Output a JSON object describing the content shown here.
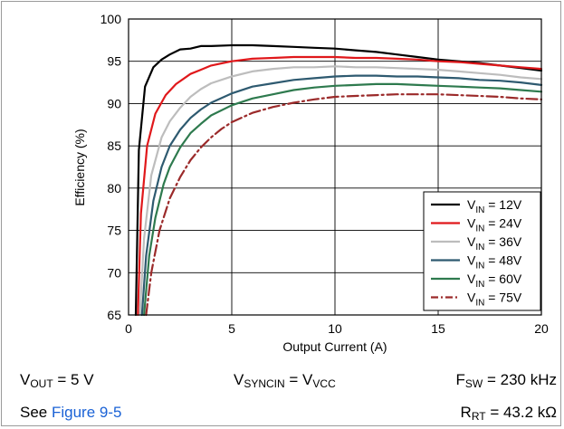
{
  "chart_data": {
    "type": "line",
    "xlabel": "Output Current (A)",
    "ylabel": "Efficiency (%)",
    "xlim": [
      0,
      20
    ],
    "ylim": [
      65,
      100
    ],
    "xticks": [
      0,
      5,
      10,
      15,
      20
    ],
    "yticks": [
      65,
      70,
      75,
      80,
      85,
      90,
      95,
      100
    ],
    "grid": true,
    "legend_position": "bottom-right",
    "series": [
      {
        "name": "VIN = 12V",
        "name_main": "V",
        "name_sub": "IN",
        "name_rest": " = 12V",
        "color": "#000000",
        "dash": "solid",
        "x": [
          0.35,
          0.5,
          0.8,
          1.2,
          1.6,
          2,
          2.5,
          3,
          3.5,
          4,
          5,
          6,
          7,
          8,
          9,
          10,
          11,
          12,
          13,
          14,
          15,
          16,
          17,
          18,
          19,
          20
        ],
        "y": [
          65,
          84.5,
          92,
          94.3,
          95.2,
          95.8,
          96.4,
          96.5,
          96.8,
          96.8,
          96.9,
          96.9,
          96.8,
          96.7,
          96.6,
          96.5,
          96.3,
          96.1,
          95.8,
          95.5,
          95.2,
          95.0,
          94.8,
          94.5,
          94.2,
          93.9
        ]
      },
      {
        "name": "VIN = 24V",
        "name_main": "V",
        "name_sub": "IN",
        "name_rest": " = 24V",
        "color": "#e0181b",
        "dash": "solid",
        "x": [
          0.45,
          0.6,
          0.9,
          1.3,
          1.8,
          2.3,
          3,
          3.5,
          4,
          5,
          6,
          7,
          8,
          9,
          10,
          11,
          12,
          13,
          14,
          15,
          16,
          17,
          18,
          19,
          20
        ],
        "y": [
          65,
          77,
          85,
          88.8,
          91,
          92.3,
          93.5,
          94,
          94.5,
          95,
          95.3,
          95.4,
          95.5,
          95.5,
          95.5,
          95.4,
          95.4,
          95.3,
          95.2,
          95.0,
          94.9,
          94.7,
          94.5,
          94.3,
          94.1
        ]
      },
      {
        "name": "VIN = 36V",
        "name_main": "V",
        "name_sub": "IN",
        "name_rest": " = 36V",
        "color": "#bdbdbd",
        "dash": "solid",
        "x": [
          0.55,
          0.75,
          1.1,
          1.6,
          2,
          2.5,
          3,
          3.5,
          4,
          5,
          6,
          7,
          8,
          9,
          10,
          11,
          12,
          13,
          14,
          15,
          16,
          17,
          18,
          19,
          20
        ],
        "y": [
          65,
          74,
          81.5,
          86,
          87.9,
          89.5,
          90.8,
          91.7,
          92.4,
          93.2,
          93.8,
          94.1,
          94.3,
          94.3,
          94.4,
          94.3,
          94.3,
          94.2,
          94.1,
          94.0,
          93.8,
          93.6,
          93.4,
          93.1,
          92.9
        ]
      },
      {
        "name": "VIN = 48V",
        "name_main": "V",
        "name_sub": "IN",
        "name_rest": " = 48V",
        "color": "#2e5a70",
        "dash": "solid",
        "x": [
          0.65,
          0.85,
          1.2,
          1.6,
          2,
          2.5,
          3,
          3.5,
          4,
          5,
          6,
          7,
          8,
          9,
          10,
          11,
          12,
          13,
          14,
          15,
          16,
          17,
          18,
          19,
          20
        ],
        "y": [
          65,
          72,
          78.5,
          82.5,
          85,
          86.9,
          88.3,
          89.3,
          90.1,
          91.2,
          92,
          92.4,
          92.8,
          93.0,
          93.2,
          93.3,
          93.3,
          93.2,
          93.2,
          93.1,
          93.0,
          92.8,
          92.7,
          92.5,
          92.2
        ]
      },
      {
        "name": "VIN = 60V",
        "name_main": "V",
        "name_sub": "IN",
        "name_rest": " = 60V",
        "color": "#2e7a4e",
        "dash": "solid",
        "x": [
          0.75,
          1.0,
          1.3,
          1.7,
          2,
          2.5,
          3,
          3.5,
          4,
          5,
          6,
          7,
          8,
          9,
          10,
          11,
          12,
          13,
          14,
          15,
          16,
          17,
          18,
          19,
          20
        ],
        "y": [
          65,
          72,
          76.5,
          80.5,
          82.5,
          84.8,
          86.5,
          87.6,
          88.6,
          89.8,
          90.6,
          91.1,
          91.6,
          91.9,
          92.1,
          92.2,
          92.3,
          92.3,
          92.2,
          92.1,
          92.0,
          91.9,
          91.8,
          91.6,
          91.4
        ]
      },
      {
        "name": "VIN = 75V",
        "name_main": "V",
        "name_sub": "IN",
        "name_rest": " = 75V",
        "color": "#9b2a2a",
        "dash": "dashdot",
        "x": [
          0.85,
          1.1,
          1.5,
          2,
          2.5,
          3,
          3.5,
          4,
          4.5,
          5,
          6,
          7,
          8,
          9,
          10,
          11,
          12,
          13,
          14,
          15,
          16,
          17,
          18,
          19,
          20
        ],
        "y": [
          65,
          70,
          75,
          78.8,
          81.3,
          83.3,
          84.8,
          86,
          87,
          87.8,
          88.9,
          89.6,
          90.1,
          90.5,
          90.8,
          90.9,
          91.0,
          91.1,
          91.1,
          91.1,
          91.0,
          90.9,
          90.8,
          90.6,
          90.5
        ]
      }
    ]
  },
  "footer": {
    "vout_main": "V",
    "vout_sub": "OUT",
    "vout_rest": " = 5 V",
    "sync_main": "V",
    "sync_sub": "SYNCIN",
    "sync_eq": " = V",
    "sync_sub2": "VCC",
    "fsw_main": "F",
    "fsw_sub": "SW",
    "fsw_rest": " = 230 kHz",
    "see_text": "See ",
    "see_link": "Figure 9-5",
    "rrt_main": "R",
    "rrt_sub": "RT",
    "rrt_rest": " = 43.2 kΩ"
  }
}
